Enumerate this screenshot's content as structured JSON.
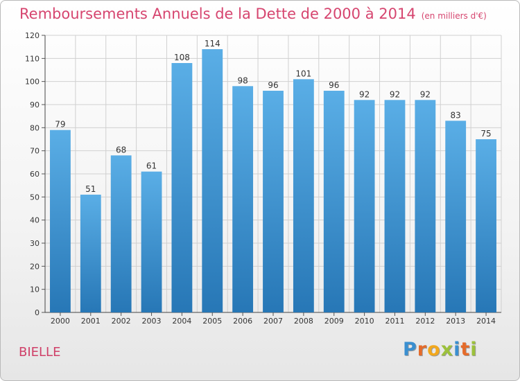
{
  "title": "Remboursements Annuels de la Dette de 2000 à 2014",
  "unit_note": "(en milliers d'€)",
  "commune": "BIELLE",
  "logo": {
    "letters": [
      "P",
      "r",
      "o",
      "x",
      "i",
      "t",
      "i"
    ],
    "colors": [
      "#3a8fd0",
      "#e56b2a",
      "#f2a81d",
      "#9cc13b",
      "#3a8fd0",
      "#e56b2a",
      "#9cc13b"
    ]
  },
  "colors": {
    "bar_top": "#5aaee6",
    "bar_bottom": "#2777b6",
    "title": "#d6456f",
    "grid": "#d0d0d0"
  },
  "chart_data": {
    "type": "bar",
    "title": "Remboursements Annuels de la Dette de 2000 à 2014",
    "subtitle": "(en milliers d'€)",
    "categories": [
      "2000",
      "2001",
      "2002",
      "2003",
      "2004",
      "2005",
      "2006",
      "2007",
      "2008",
      "2009",
      "2010",
      "2011",
      "2012",
      "2013",
      "2014"
    ],
    "values": [
      79,
      51,
      68,
      61,
      108,
      114,
      98,
      96,
      101,
      96,
      92,
      92,
      92,
      83,
      75
    ],
    "ylim": [
      0,
      120
    ],
    "yticks": [
      0,
      10,
      20,
      30,
      40,
      50,
      60,
      70,
      80,
      90,
      100,
      110,
      120
    ],
    "grid": true,
    "data_labels": true
  }
}
